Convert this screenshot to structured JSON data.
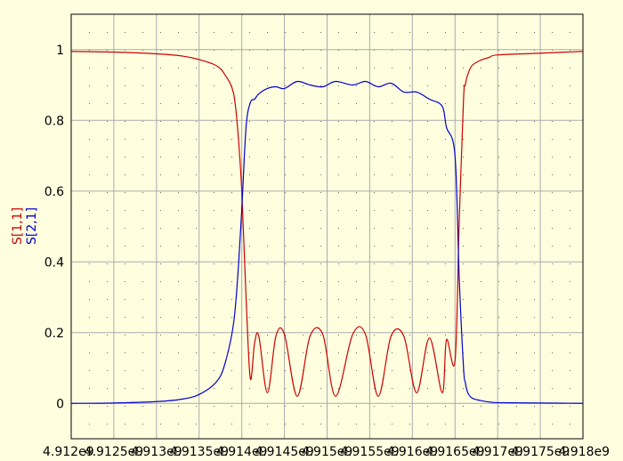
{
  "chart_data": {
    "type": "line",
    "title": "",
    "xlabel": "",
    "ylabel_series": [
      "S[1,1]",
      "S[2,1]"
    ],
    "xlim": [
      4912000000.0,
      4918000000.0
    ],
    "ylim": [
      -0.1,
      1.1
    ],
    "grid": true,
    "background": "#ffffe0",
    "x_ticks": [
      4912000000.0,
      4912500000.0,
      4913000000.0,
      4913500000.0,
      4914000000.0,
      4914500000.0,
      4915000000.0,
      4915500000.0,
      4916000000.0,
      4916500000.0,
      4917000000.0,
      4917500000.0,
      4918000000.0
    ],
    "x_tick_labels": [
      "4.912e9",
      "4.9125e9",
      "4.913e9",
      "4.9135e9",
      "4.914e9",
      "4.9145e9",
      "4.915e9",
      "4.9155e9",
      "4.916e9",
      "4.9165e9",
      "4.917e9",
      "4.9175e9",
      "4.918e9"
    ],
    "y_ticks": [
      0,
      0.2,
      0.4,
      0.6,
      0.8,
      1
    ],
    "y_tick_labels": [
      "0",
      "0.2",
      "0.4",
      "0.6",
      "0.8",
      "1"
    ],
    "series": [
      {
        "name": "S[1,1]",
        "color": "#cc0000",
        "x": [
          4912000000.0,
          4912500000.0,
          4913000000.0,
          4913300000.0,
          4913500000.0,
          4913700000.0,
          4913800000.0,
          4913900000.0,
          4913950000.0,
          4914000000.0,
          4914050000.0,
          4914100000.0,
          4914150000.0,
          4914200000.0,
          4914300000.0,
          4914400000.0,
          4914500000.0,
          4914650000.0,
          4914800000.0,
          4914950000.0,
          4915100000.0,
          4915300000.0,
          4915450000.0,
          4915600000.0,
          4915750000.0,
          4915900000.0,
          4916050000.0,
          4916200000.0,
          4916350000.0,
          4916400000.0,
          4916500000.0,
          4916550000.0,
          4916600000.0,
          4916620000.0,
          4916650000.0,
          4916700000.0,
          4916800000.0,
          4916900000.0,
          4917000000.0,
          4917500000.0,
          4918000000.0
        ],
        "y": [
          0.995,
          0.993,
          0.988,
          0.982,
          0.972,
          0.955,
          0.93,
          0.88,
          0.78,
          0.6,
          0.3,
          0.07,
          0.17,
          0.19,
          0.03,
          0.19,
          0.195,
          0.02,
          0.19,
          0.195,
          0.02,
          0.195,
          0.195,
          0.02,
          0.19,
          0.19,
          0.03,
          0.185,
          0.03,
          0.18,
          0.12,
          0.52,
          0.86,
          0.9,
          0.93,
          0.955,
          0.97,
          0.978,
          0.985,
          0.99,
          0.995
        ]
      },
      {
        "name": "S[2,1]",
        "color": "#0000cc",
        "x": [
          4912000000.0,
          4912500000.0,
          4913000000.0,
          4913300000.0,
          4913500000.0,
          4913700000.0,
          4913800000.0,
          4913900000.0,
          4913950000.0,
          4914000000.0,
          4914050000.0,
          4914100000.0,
          4914150000.0,
          4914200000.0,
          4914300000.0,
          4914400000.0,
          4914500000.0,
          4914650000.0,
          4914800000.0,
          4914950000.0,
          4915100000.0,
          4915300000.0,
          4915450000.0,
          4915600000.0,
          4915750000.0,
          4915900000.0,
          4916050000.0,
          4916200000.0,
          4916350000.0,
          4916400000.0,
          4916500000.0,
          4916550000.0,
          4916600000.0,
          4916620000.0,
          4916650000.0,
          4916700000.0,
          4916800000.0,
          4916900000.0,
          4917000000.0,
          4917500000.0,
          4918000000.0
        ],
        "y": [
          0.0,
          0.001,
          0.005,
          0.012,
          0.025,
          0.06,
          0.11,
          0.22,
          0.35,
          0.55,
          0.78,
          0.85,
          0.86,
          0.875,
          0.89,
          0.895,
          0.89,
          0.91,
          0.9,
          0.895,
          0.91,
          0.9,
          0.91,
          0.895,
          0.905,
          0.88,
          0.88,
          0.86,
          0.84,
          0.78,
          0.7,
          0.35,
          0.1,
          0.06,
          0.03,
          0.015,
          0.008,
          0.004,
          0.002,
          0.001,
          0.0
        ]
      }
    ]
  }
}
